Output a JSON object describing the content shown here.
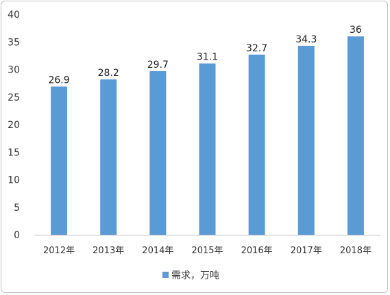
{
  "chart_data": {
    "type": "bar",
    "categories": [
      "2012年",
      "2013年",
      "2014年",
      "2015年",
      "2016年",
      "2017年",
      "2018年"
    ],
    "series": [
      {
        "name": "需求，万吨",
        "values": [
          26.9,
          28.2,
          29.7,
          31.1,
          32.7,
          34.3,
          36
        ]
      }
    ],
    "data_labels": [
      "26.9",
      "28.2",
      "29.7",
      "31.1",
      "32.7",
      "34.3",
      "36"
    ],
    "ylim": [
      0,
      40
    ],
    "yticks": [
      0,
      5,
      10,
      15,
      20,
      25,
      30,
      35,
      40
    ],
    "xlabel": "",
    "ylabel": "",
    "grid": false,
    "legend": {
      "position": "bottom",
      "label": "需求，万吨"
    },
    "colors": {
      "bar": "#5b9bd5",
      "axis": "#bfbfbf"
    }
  }
}
